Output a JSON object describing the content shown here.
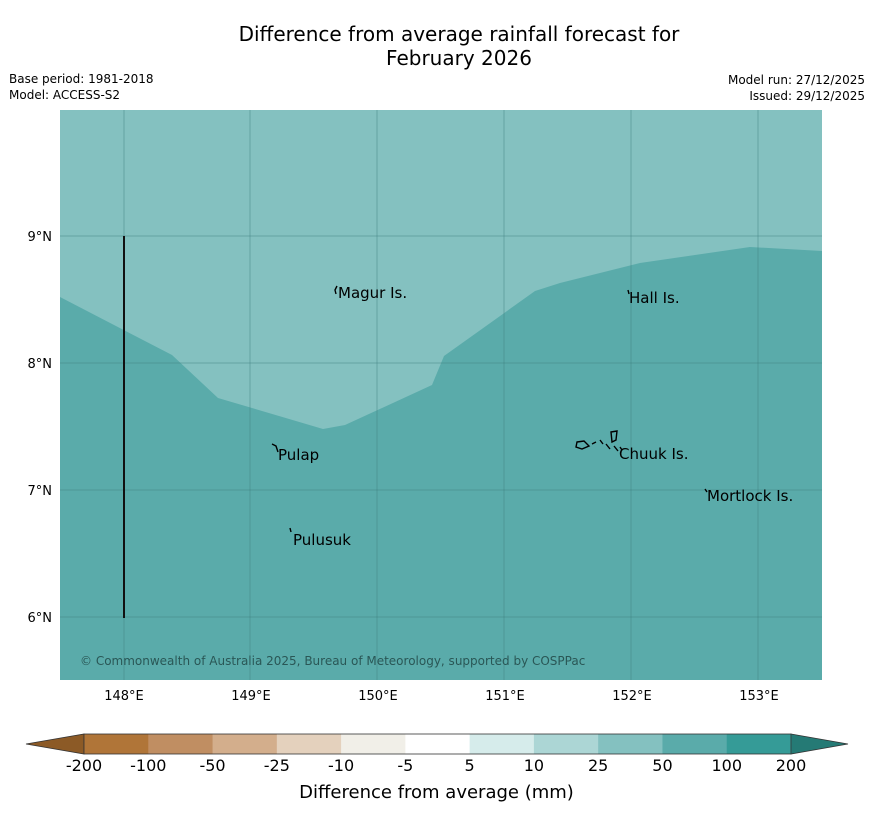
{
  "title": {
    "line1": "Difference from average rainfall forecast for",
    "line2": "February 2026"
  },
  "meta": {
    "base_period": "Base period: 1981-2018",
    "model": "Model: ACCESS-S2",
    "model_run": "Model run: 27/12/2025",
    "issued": "Issued: 29/12/2025"
  },
  "map": {
    "lon_ticks": [
      "148°E",
      "149°E",
      "150°E",
      "151°E",
      "152°E",
      "153°E"
    ],
    "lat_ticks": [
      "9°N",
      "8°N",
      "7°N",
      "6°N"
    ],
    "regions": [
      {
        "name": "northern zone",
        "category": "25 to 50",
        "color": "#84c1c0"
      },
      {
        "name": "southern zone",
        "category": "50 to 100",
        "color": "#5aabaa"
      }
    ],
    "places": [
      {
        "name": "Magur Is."
      },
      {
        "name": "Hall Is."
      },
      {
        "name": "Pulap"
      },
      {
        "name": "Chuuk Is."
      },
      {
        "name": "Mortlock Is."
      },
      {
        "name": "Pulusuk"
      }
    ],
    "copyright": "© Commonwealth of Australia 2025, Bureau of Meteorology, supported by COSPPac"
  },
  "colorbar": {
    "labels": [
      "-200",
      "-100",
      "-50",
      "-25",
      "-10",
      "-5",
      "5",
      "10",
      "25",
      "50",
      "100",
      "200"
    ],
    "colors": [
      "#b07538",
      "#c08e62",
      "#d3ae8c",
      "#e4d1bd",
      "#f1efe8",
      "#ffffff",
      "#d6eceb",
      "#acd6d5",
      "#84c1c0",
      "#5aabaa",
      "#359b97"
    ],
    "low_extension_color": "#8c5a26",
    "high_extension_color": "#257a75",
    "axis_label": "Difference from average (mm)"
  }
}
